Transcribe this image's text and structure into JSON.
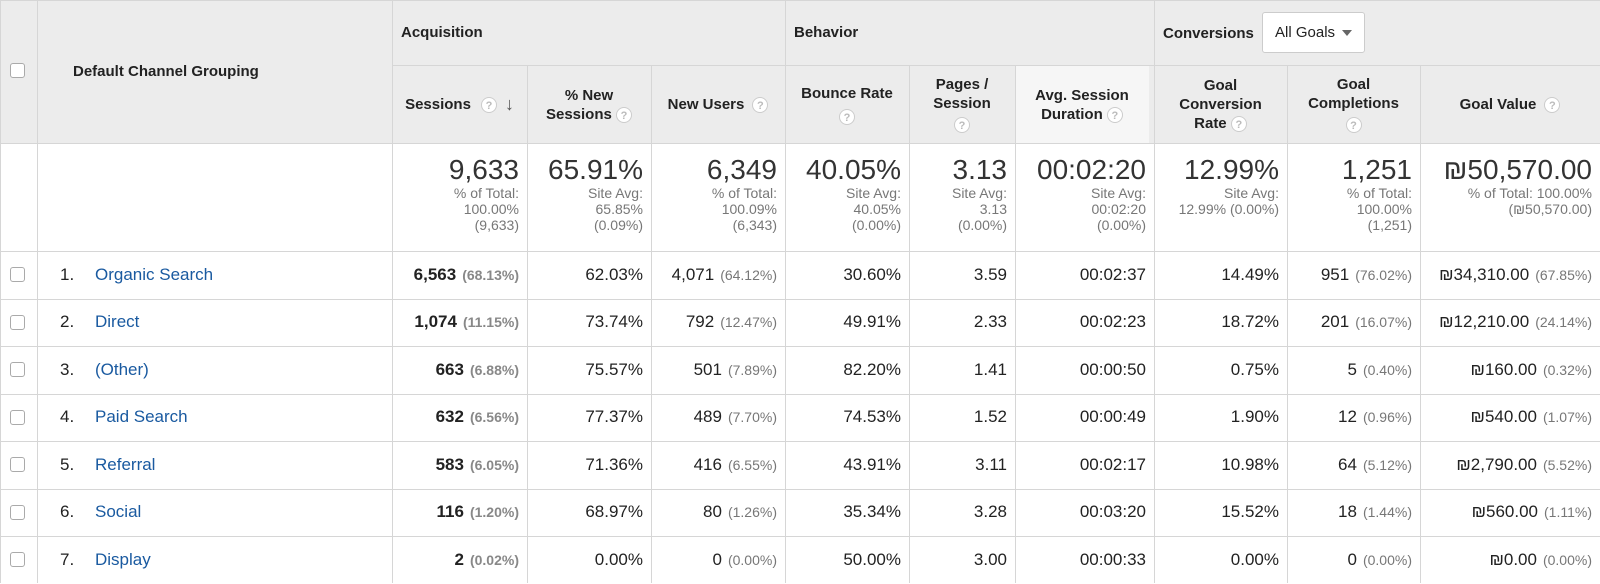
{
  "header": {
    "dimension": "Default Channel Grouping",
    "groups": {
      "acquisition": "Acquisition",
      "behavior": "Behavior",
      "conversions": "Conversions"
    },
    "goal_select": "All Goals",
    "help_glyph": "?",
    "sort_arrow": "↓",
    "columns": {
      "sessions": "Sessions",
      "new_sessions": [
        "% New",
        "Sessions"
      ],
      "new_users": "New Users",
      "bounce_rate": "Bounce Rate",
      "pages_session": [
        "Pages /",
        "Session"
      ],
      "avg_session": [
        "Avg. Session",
        "Duration"
      ],
      "goal_conv": [
        "Goal",
        "Conversion",
        "Rate"
      ],
      "goal_compl": [
        "Goal",
        "Completions"
      ],
      "goal_value": "Goal Value"
    }
  },
  "totals": [
    {
      "value": "9,633",
      "sub": [
        "% of Total:",
        "100.00%",
        "(9,633)"
      ]
    },
    {
      "value": "65.91%",
      "sub": [
        "Site Avg:",
        "65.85%",
        "(0.09%)"
      ]
    },
    {
      "value": "6,349",
      "sub": [
        "% of Total:",
        "100.09%",
        "(6,343)"
      ]
    },
    {
      "value": "40.05%",
      "sub": [
        "Site Avg:",
        "40.05%",
        "(0.00%)"
      ]
    },
    {
      "value": "3.13",
      "sub": [
        "Site Avg:",
        "3.13",
        "(0.00%)"
      ]
    },
    {
      "value": "00:02:20",
      "sub": [
        "Site Avg:",
        "00:02:20",
        "(0.00%)"
      ]
    },
    {
      "value": "12.99%",
      "sub": [
        "Site Avg:",
        "12.99% (0.00%)"
      ]
    },
    {
      "value": "1,251",
      "sub": [
        "% of Total:",
        "100.00%",
        "(1,251)"
      ]
    },
    {
      "value": "₪50,570.00",
      "sub": [
        "% of Total: 100.00%",
        "(₪50,570.00)"
      ]
    }
  ],
  "rows": [
    {
      "idx": "1.",
      "name": "Organic Search",
      "sessions": "6,563",
      "sessions_pct": "(68.13%)",
      "new_sess": "62.03%",
      "new_users": "4,071",
      "new_users_pct": "(64.12%)",
      "bounce": "30.60%",
      "pages": "3.59",
      "duration": "00:02:37",
      "conv": "14.49%",
      "compl": "951",
      "compl_pct": "(76.02%)",
      "value": "₪34,310.00",
      "value_pct": "(67.85%)"
    },
    {
      "idx": "2.",
      "name": "Direct",
      "sessions": "1,074",
      "sessions_pct": "(11.15%)",
      "new_sess": "73.74%",
      "new_users": "792",
      "new_users_pct": "(12.47%)",
      "bounce": "49.91%",
      "pages": "2.33",
      "duration": "00:02:23",
      "conv": "18.72%",
      "compl": "201",
      "compl_pct": "(16.07%)",
      "value": "₪12,210.00",
      "value_pct": "(24.14%)"
    },
    {
      "idx": "3.",
      "name": "(Other)",
      "sessions": "663",
      "sessions_pct": "(6.88%)",
      "new_sess": "75.57%",
      "new_users": "501",
      "new_users_pct": "(7.89%)",
      "bounce": "82.20%",
      "pages": "1.41",
      "duration": "00:00:50",
      "conv": "0.75%",
      "compl": "5",
      "compl_pct": "(0.40%)",
      "value": "₪160.00",
      "value_pct": "(0.32%)"
    },
    {
      "idx": "4.",
      "name": "Paid Search",
      "sessions": "632",
      "sessions_pct": "(6.56%)",
      "new_sess": "77.37%",
      "new_users": "489",
      "new_users_pct": "(7.70%)",
      "bounce": "74.53%",
      "pages": "1.52",
      "duration": "00:00:49",
      "conv": "1.90%",
      "compl": "12",
      "compl_pct": "(0.96%)",
      "value": "₪540.00",
      "value_pct": "(1.07%)"
    },
    {
      "idx": "5.",
      "name": "Referral",
      "sessions": "583",
      "sessions_pct": "(6.05%)",
      "new_sess": "71.36%",
      "new_users": "416",
      "new_users_pct": "(6.55%)",
      "bounce": "43.91%",
      "pages": "3.11",
      "duration": "00:02:17",
      "conv": "10.98%",
      "compl": "64",
      "compl_pct": "(5.12%)",
      "value": "₪2,790.00",
      "value_pct": "(5.52%)"
    },
    {
      "idx": "6.",
      "name": "Social",
      "sessions": "116",
      "sessions_pct": "(1.20%)",
      "new_sess": "68.97%",
      "new_users": "80",
      "new_users_pct": "(1.26%)",
      "bounce": "35.34%",
      "pages": "3.28",
      "duration": "00:03:20",
      "conv": "15.52%",
      "compl": "18",
      "compl_pct": "(1.44%)",
      "value": "₪560.00",
      "value_pct": "(1.11%)"
    },
    {
      "idx": "7.",
      "name": "Display",
      "sessions": "2",
      "sessions_pct": "(0.02%)",
      "new_sess": "0.00%",
      "new_users": "0",
      "new_users_pct": "(0.00%)",
      "bounce": "50.00%",
      "pages": "3.00",
      "duration": "00:00:33",
      "conv": "0.00%",
      "compl": "0",
      "compl_pct": "(0.00%)",
      "value": "₪0.00",
      "value_pct": "(0.00%)"
    }
  ]
}
